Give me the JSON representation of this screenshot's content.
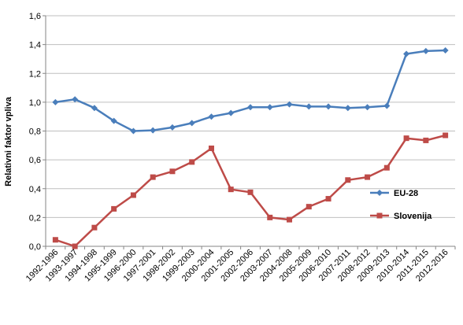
{
  "chart_data": {
    "type": "line",
    "title": "",
    "xlabel": "",
    "ylabel": "Relativni faktor vpliva",
    "ylim": [
      0,
      1.6
    ],
    "yticks": [
      "0,0",
      "0,2",
      "0,4",
      "0,6",
      "0,8",
      "1,0",
      "1,2",
      "1,4",
      "1,6"
    ],
    "grid": true,
    "legend_position": "right",
    "categories": [
      "1992-1996",
      "1993-1997",
      "1994-1998",
      "1995-1999",
      "1996-2000",
      "1997-2001",
      "1998-2002",
      "1999-2003",
      "2000-2004",
      "2001-2005",
      "2002-2006",
      "2003-2007",
      "2004-2008",
      "2005-2009",
      "2006-2010",
      "2007-2011",
      "2008-2012",
      "2009-2013",
      "2010-2014",
      "2011-2015",
      "2012-2016"
    ],
    "series": [
      {
        "name": "EU-28",
        "color": "#4A7EBB",
        "marker": "diamond",
        "values": [
          1.0,
          1.02,
          0.96,
          0.87,
          0.8,
          0.805,
          0.825,
          0.855,
          0.9,
          0.925,
          0.965,
          0.965,
          0.985,
          0.97,
          0.97,
          0.96,
          0.965,
          0.975,
          1.335,
          1.355,
          1.36
        ]
      },
      {
        "name": "Slovenija",
        "color": "#BE4B48",
        "marker": "square",
        "values": [
          0.045,
          0.0,
          0.13,
          0.26,
          0.355,
          0.48,
          0.52,
          0.585,
          0.68,
          0.395,
          0.375,
          0.2,
          0.185,
          0.275,
          0.33,
          0.46,
          0.48,
          0.545,
          0.75,
          0.735,
          0.77
        ]
      }
    ]
  }
}
